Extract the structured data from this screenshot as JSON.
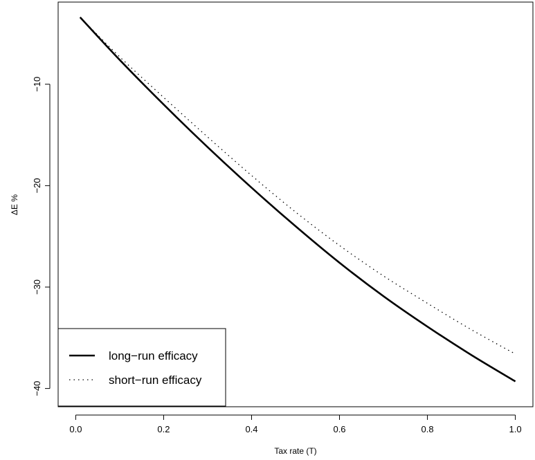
{
  "chart_data": {
    "type": "line",
    "title": "",
    "xlabel": "Tax rate (T)",
    "ylabel": "ΔE %",
    "xlim": [
      -0.04,
      1.04
    ],
    "ylim": [
      -41.8,
      -1.9
    ],
    "x_ticks": [
      0.0,
      0.2,
      0.4,
      0.6,
      0.8,
      1.0
    ],
    "x_tick_labels": [
      "0.0",
      "0.2",
      "0.4",
      "0.6",
      "0.8",
      "1.0"
    ],
    "y_ticks": [
      -10,
      -20,
      -30,
      -40
    ],
    "y_tick_labels": [
      "−10",
      "−20",
      "−30",
      "−40"
    ],
    "grid": false,
    "legend_position": "bottom-left",
    "series": [
      {
        "name": "long−run efficacy",
        "style": "solid",
        "color": "#000000",
        "x": [
          0.01,
          0.1,
          0.2,
          0.3,
          0.4,
          0.5,
          0.6,
          0.7,
          0.8,
          0.9,
          1.0
        ],
        "y": [
          -3.4,
          -7.6,
          -12.0,
          -16.2,
          -20.2,
          -24.0,
          -27.6,
          -30.9,
          -33.9,
          -36.7,
          -39.3
        ]
      },
      {
        "name": "short−run efficacy",
        "style": "dotted",
        "color": "#000000",
        "x": [
          0.01,
          0.1,
          0.2,
          0.3,
          0.4,
          0.5,
          0.6,
          0.7,
          0.8,
          0.9,
          1.0
        ],
        "y": [
          -3.4,
          -7.3,
          -11.3,
          -15.2,
          -19.0,
          -22.6,
          -25.9,
          -28.9,
          -31.6,
          -34.2,
          -36.6
        ]
      }
    ]
  }
}
